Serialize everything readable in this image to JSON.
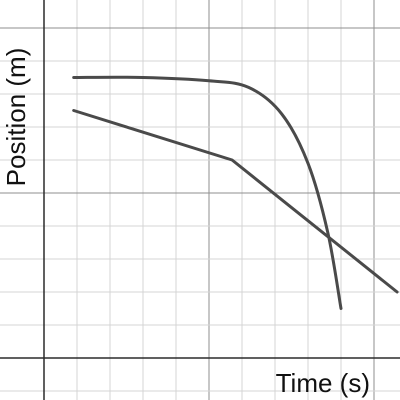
{
  "chart_data": {
    "type": "line",
    "title": "",
    "xlabel": "Time (s)",
    "ylabel": "Position (m)",
    "xlim": [
      0,
      10
    ],
    "ylim": [
      0,
      10
    ],
    "grid": true,
    "axis_ticks_labeled": false,
    "series": [
      {
        "line_style": "smooth curve",
        "color": "#4a4a4a",
        "points": [
          {
            "x": 0.9,
            "y": 8.5
          },
          {
            "x": 3.0,
            "y": 8.5
          },
          {
            "x": 5.0,
            "y": 8.4
          },
          {
            "x": 6.2,
            "y": 8.2
          },
          {
            "x": 7.2,
            "y": 7.4
          },
          {
            "x": 8.0,
            "y": 5.9
          },
          {
            "x": 8.6,
            "y": 3.8
          },
          {
            "x": 9.0,
            "y": 1.5
          }
        ]
      },
      {
        "line_style": "straight segments",
        "color": "#4a4a4a",
        "points": [
          {
            "x": 0.9,
            "y": 7.5
          },
          {
            "x": 5.7,
            "y": 6.0
          },
          {
            "x": 10.7,
            "y": 2.0
          }
        ]
      }
    ]
  }
}
